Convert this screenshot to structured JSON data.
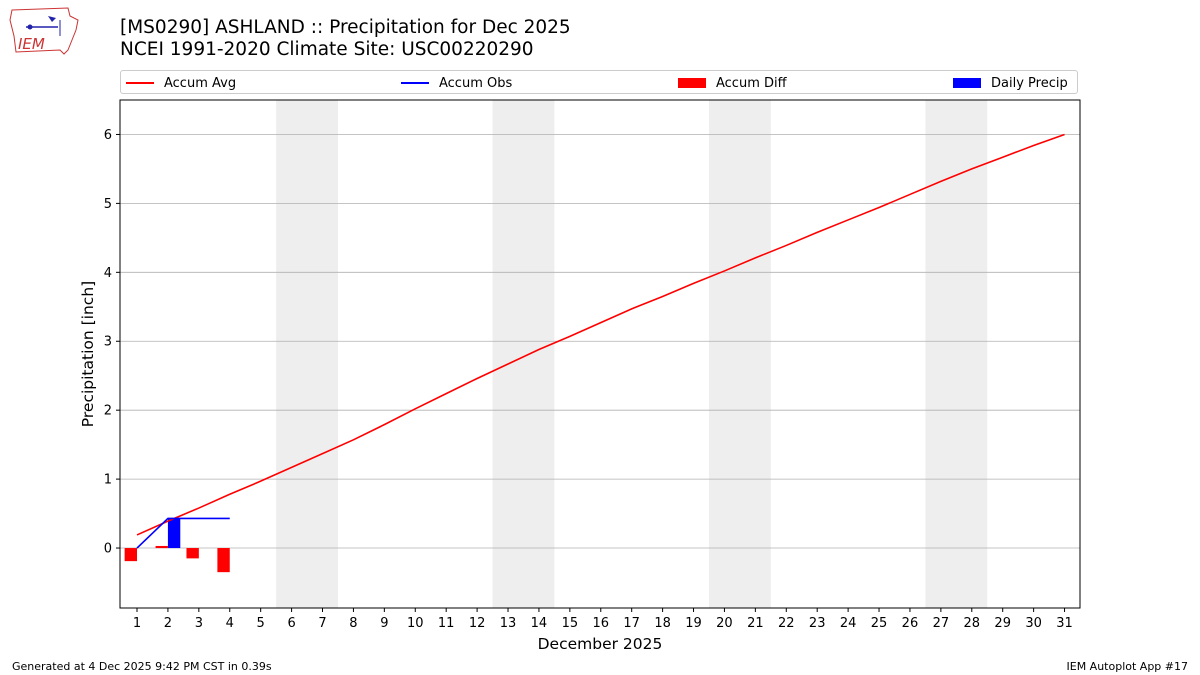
{
  "header": {
    "title_line1": "[MS0290] ASHLAND :: Precipitation for Dec 2025",
    "title_line2": "NCEI 1991-2020 Climate Site: USC00220290",
    "logo_text": "IEM"
  },
  "legend": {
    "items": [
      {
        "label": "Accum Avg",
        "kind": "line",
        "color": "#ff0000"
      },
      {
        "label": "Accum Obs",
        "kind": "line",
        "color": "#0000ff"
      },
      {
        "label": "Accum Diff",
        "kind": "bar",
        "color": "#ff0000"
      },
      {
        "label": "Daily Precip",
        "kind": "bar",
        "color": "#0000ff"
      }
    ]
  },
  "chart_data": {
    "type": "bar",
    "xlabel": "December 2025",
    "ylabel": "Precipitation [inch]",
    "ylim": [
      -0.87,
      6.5
    ],
    "yticks": [
      0,
      1,
      2,
      3,
      4,
      5,
      6
    ],
    "xlim": [
      0.45,
      31.5
    ],
    "xticks": [
      1,
      2,
      3,
      4,
      5,
      6,
      7,
      8,
      9,
      10,
      11,
      12,
      13,
      14,
      15,
      16,
      17,
      18,
      19,
      20,
      21,
      22,
      23,
      24,
      25,
      26,
      27,
      28,
      29,
      30,
      31
    ],
    "grid": "horizontal",
    "weekend_shading": [
      [
        5.5,
        7.5
      ],
      [
        12.5,
        14.5
      ],
      [
        19.5,
        21.5
      ],
      [
        26.5,
        28.5
      ]
    ],
    "series": [
      {
        "name": "Accum Avg",
        "kind": "line",
        "color": "#ff0000",
        "x": [
          1,
          2,
          3,
          4,
          5,
          6,
          7,
          8,
          9,
          10,
          11,
          12,
          13,
          14,
          15,
          16,
          17,
          18,
          19,
          20,
          21,
          22,
          23,
          24,
          25,
          26,
          27,
          28,
          29,
          30,
          31
        ],
        "values": [
          0.19,
          0.39,
          0.58,
          0.78,
          0.97,
          1.17,
          1.37,
          1.57,
          1.79,
          2.02,
          2.24,
          2.46,
          2.67,
          2.88,
          3.07,
          3.27,
          3.47,
          3.65,
          3.84,
          4.02,
          4.21,
          4.39,
          4.58,
          4.76,
          4.94,
          5.13,
          5.32,
          5.5,
          5.67,
          5.84,
          6.0
        ]
      },
      {
        "name": "Accum Obs",
        "kind": "line",
        "color": "#0000ff",
        "x": [
          1,
          2,
          3,
          4
        ],
        "values": [
          0.0,
          0.43,
          0.43,
          0.43
        ]
      },
      {
        "name": "Accum Diff",
        "kind": "bar",
        "color": "#ff0000",
        "x": [
          1,
          2,
          3,
          4
        ],
        "values": [
          -0.19,
          0.03,
          -0.15,
          -0.35
        ]
      },
      {
        "name": "Daily Precip",
        "kind": "bar",
        "color": "#0000ff",
        "x": [
          1,
          2,
          3,
          4
        ],
        "values": [
          0.0,
          0.43,
          0.0,
          0.0
        ]
      }
    ]
  },
  "footer": {
    "left": "Generated at 4 Dec 2025 9:42 PM CST in 0.39s",
    "right": "IEM Autoplot App #17"
  }
}
